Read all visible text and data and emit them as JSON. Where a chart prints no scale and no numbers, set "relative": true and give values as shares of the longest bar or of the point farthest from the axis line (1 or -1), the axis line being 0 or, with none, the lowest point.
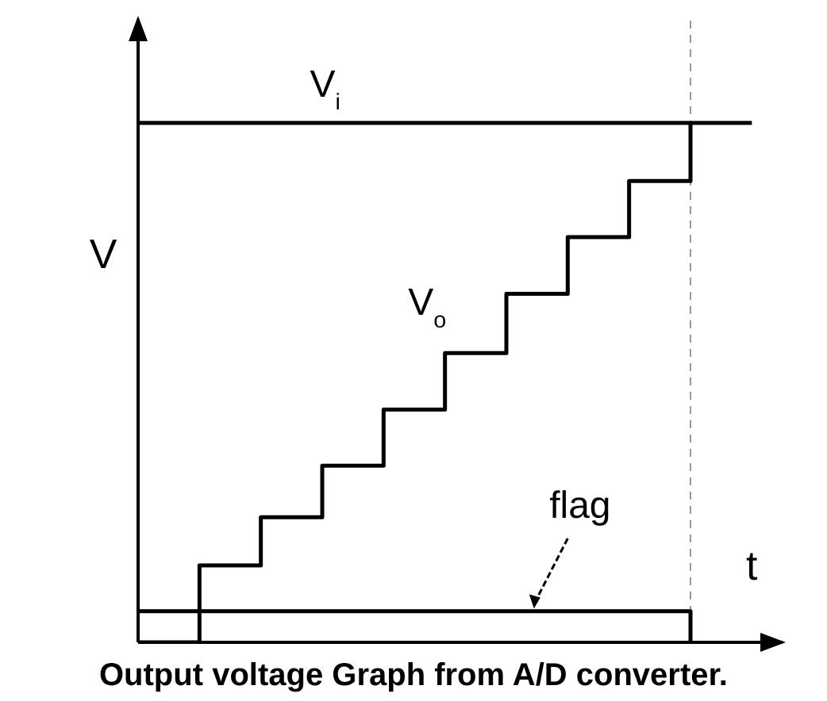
{
  "chart_data": {
    "type": "step",
    "title": "Output voltage Graph from A/D converter.",
    "xlabel": "t",
    "ylabel": "V",
    "relative": true,
    "categories": [
      null,
      null,
      null,
      null,
      null,
      null,
      null,
      null,
      null,
      null,
      null
    ],
    "series": [
      {
        "name": "V$_{i}$",
        "color": "#000000",
        "values": [
          1,
          1,
          1,
          1,
          1,
          1,
          1,
          1,
          1,
          1,
          1
        ]
      },
      {
        "name": "V$_{o}$",
        "color": "#000000",
        "values": [
          0,
          0.148,
          0.241,
          0.34,
          0.448,
          0.557,
          0.671,
          0.78,
          0.888,
          1,
          null
        ]
      },
      {
        "name": "flag",
        "color": "#000000",
        "values": [
          0.06,
          0.06,
          0.06,
          0.06,
          0.06,
          0.06,
          0.06,
          0.06,
          0.06,
          0,
          null
        ]
      }
    ],
    "marker": "none"
  }
}
